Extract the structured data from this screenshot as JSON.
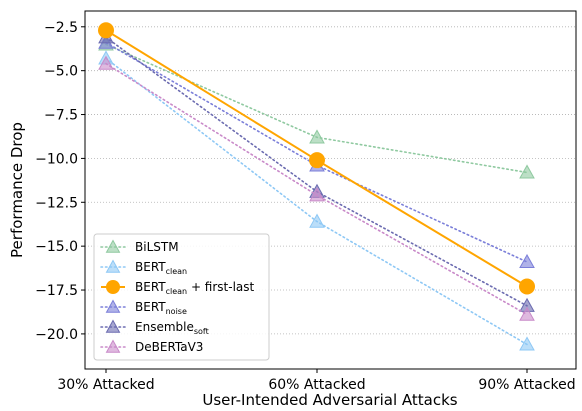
{
  "chart_data": {
    "type": "line",
    "categories": [
      "30% Attacked",
      "60% Attacked",
      "90% Attacked"
    ],
    "xlabel": "User-Intended Adversarial Attacks",
    "ylabel": "Performance Drop",
    "ylim": [
      -22,
      -1.6
    ],
    "yticks": [
      -2.5,
      -5.0,
      -7.5,
      -10.0,
      -12.5,
      -15.0,
      -17.5,
      -20.0
    ],
    "ytick_labels": [
      "−2.5",
      "−5.0",
      "−7.5",
      "−10.0",
      "−12.5",
      "−15.0",
      "−17.5",
      "−20.0"
    ],
    "grid": "horizontal dotted",
    "legend_position": "lower-left",
    "series": [
      {
        "key": "bilstm",
        "name": "BiLSTM",
        "sub": "",
        "extra": "",
        "color": "#8fc9a0",
        "marker": "triangle",
        "line": "dotted",
        "values": [
          -3.5,
          -8.8,
          -10.8
        ]
      },
      {
        "key": "bert_clean",
        "name": "BERT",
        "sub": "clean",
        "extra": "",
        "color": "#8ec8f5",
        "marker": "triangle",
        "line": "dotted",
        "values": [
          -4.3,
          -13.6,
          -20.6
        ]
      },
      {
        "key": "bert_clean_fl",
        "name": "BERT",
        "sub": "clean",
        "extra": " + first-last",
        "color": "#ffa500",
        "marker": "circle",
        "line": "solid",
        "values": [
          -2.7,
          -10.1,
          -17.3
        ]
      },
      {
        "key": "bert_noise",
        "name": "BERT",
        "sub": "noise",
        "extra": "",
        "color": "#7b7fd9",
        "marker": "triangle",
        "line": "dotted",
        "values": [
          -3.4,
          -10.4,
          -15.9
        ]
      },
      {
        "key": "ensemble_soft",
        "name": "Ensemble",
        "sub": "soft",
        "extra": "",
        "color": "#6b6bb0",
        "marker": "triangle",
        "line": "dotted",
        "values": [
          -3.1,
          -11.9,
          -18.4
        ]
      },
      {
        "key": "deberta",
        "name": "DeBERTaV3",
        "sub": "",
        "extra": "",
        "color": "#c98ac9",
        "marker": "triangle",
        "line": "dotted",
        "values": [
          -4.6,
          -12.1,
          -18.9
        ]
      }
    ]
  }
}
